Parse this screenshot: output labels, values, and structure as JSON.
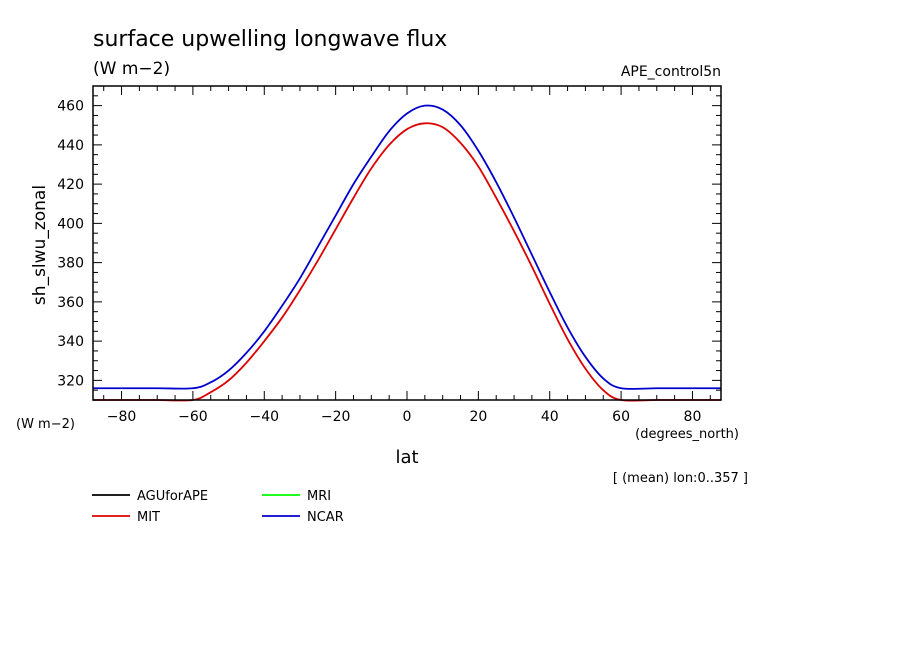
{
  "chart_data": {
    "type": "line",
    "title": "surface upwelling longwave flux",
    "subtitle": "(W m−2)",
    "run_label": "APE_control5n",
    "ylabel": "sh_slwu_zonal",
    "y_units": "(W m−2)",
    "xlabel": "lat",
    "x_units": "(degrees_north)",
    "note": "[ (mean) lon:0..357 ]",
    "xlim": [
      -88,
      88
    ],
    "ylim": [
      310,
      470
    ],
    "x_ticks": [
      -80,
      -60,
      -40,
      -20,
      0,
      20,
      40,
      60,
      80
    ],
    "x_tick_labels": [
      "−80",
      "−60",
      "−40",
      "−20",
      "0",
      "20",
      "40",
      "60",
      "80"
    ],
    "y_ticks": [
      320,
      340,
      360,
      380,
      400,
      420,
      440,
      460
    ],
    "y_tick_labels": [
      "320",
      "340",
      "360",
      "380",
      "400",
      "420",
      "440",
      "460"
    ],
    "grid": false,
    "x": [
      -88,
      -80,
      -70,
      -60,
      -55,
      -50,
      -45,
      -40,
      -35,
      -30,
      -25,
      -20,
      -15,
      -10,
      -5,
      0,
      5,
      10,
      15,
      20,
      25,
      30,
      35,
      40,
      45,
      50,
      55,
      60,
      70,
      80,
      88
    ],
    "series": [
      {
        "name": "AGUforAPE",
        "color": "#000000",
        "values": [
          null,
          null,
          null,
          null,
          null,
          null,
          null,
          null,
          null,
          null,
          null,
          null,
          null,
          null,
          null,
          null,
          null,
          null,
          null,
          null,
          null,
          null,
          null,
          null,
          null,
          null,
          null,
          null,
          null,
          null,
          null
        ]
      },
      {
        "name": "MRI",
        "color": "#00ff00",
        "values": [
          null,
          null,
          null,
          null,
          null,
          null,
          null,
          null,
          null,
          null,
          null,
          null,
          null,
          null,
          null,
          null,
          null,
          null,
          null,
          null,
          null,
          null,
          null,
          null,
          null,
          null,
          null,
          null,
          null,
          null,
          null
        ]
      },
      {
        "name": "MIT",
        "color": "#dd0000",
        "values": [
          310,
          310,
          310,
          310,
          314,
          320,
          329,
          340,
          352,
          366,
          381,
          397,
          413,
          428,
          440,
          448,
          451,
          449,
          441,
          429,
          413,
          396,
          378,
          359,
          341,
          326,
          315,
          310,
          310,
          310,
          310
        ]
      },
      {
        "name": "NCAR",
        "color": "#0000cc",
        "values": [
          316,
          316,
          316,
          316,
          319,
          325,
          334,
          345,
          358,
          372,
          388,
          404,
          420,
          434,
          447,
          456,
          460,
          458,
          450,
          437,
          421,
          403,
          384,
          365,
          347,
          332,
          321,
          316,
          316,
          316,
          316
        ]
      }
    ],
    "legend_position": "bottom-left"
  }
}
